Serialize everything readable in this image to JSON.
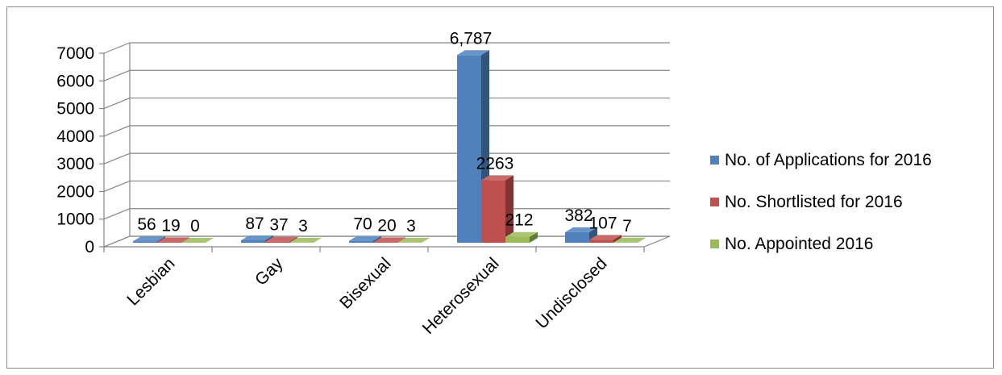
{
  "chart_data": {
    "type": "bar",
    "style": "3d-clustered-column",
    "title": "",
    "xlabel": "",
    "ylabel": "",
    "ylim": [
      0,
      7000
    ],
    "y_ticks": [
      "0",
      "1000",
      "2000",
      "3000",
      "4000",
      "5000",
      "6000",
      "7000"
    ],
    "grid": true,
    "legend_position": "right",
    "categories": [
      "Lesbian",
      "Gay",
      "Bisexual",
      "Heterosexual",
      "Undisclosed"
    ],
    "series": [
      {
        "name": "No. of Applications for 2016",
        "color": "#4f81bd",
        "values": [
          56,
          87,
          70,
          6787,
          382
        ],
        "labels": [
          "56",
          "87",
          "70",
          "6,787",
          "382"
        ]
      },
      {
        "name": "No. Shortlisted for 2016",
        "color": "#c0504d",
        "values": [
          19,
          37,
          20,
          2263,
          107
        ],
        "labels": [
          "19",
          "37",
          "20",
          "2263",
          "107"
        ]
      },
      {
        "name": "No. Appointed 2016",
        "color": "#9bbb59",
        "values": [
          0,
          3,
          3,
          212,
          7
        ],
        "labels": [
          "0",
          "3",
          "3",
          "212",
          "7"
        ]
      }
    ]
  }
}
